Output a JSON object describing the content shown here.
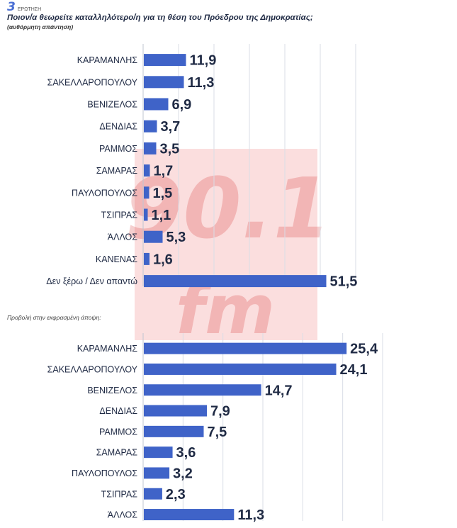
{
  "header": {
    "question_number": "3",
    "question_label": "ΕΡΩΤΗΣΗ",
    "title": "Ποιον/α θεωρείτε καταλληλότερο/η για τη θέση του Πρόεδρου της Δημοκρατίας;",
    "subtitle": "(αυθόρμητη απάντηση)"
  },
  "watermark": {
    "text_top": "90.1",
    "text_bottom": "fm",
    "color": "#d62828"
  },
  "colors": {
    "bar": "#3f63c8",
    "text": "#1f2a44",
    "grid": "#d9dde6"
  },
  "section2_label": "Προβολή στην εκφρασμένη άποψη:",
  "chart_data": [
    {
      "type": "bar",
      "orientation": "horizontal",
      "title": "",
      "categories": [
        "ΚΑΡΑΜΑΝΛΗΣ",
        "ΣΑΚΕΛΛΑΡΟΠΟΥΛΟΥ",
        "ΒΕΝΙΖΕΛΟΣ",
        "ΔΕΝΔΙΑΣ",
        "ΡΑΜΜΟΣ",
        "ΣΑΜΑΡΑΣ",
        "ΠΑΥΛΟΠΟΥΛΟΣ",
        "ΤΣΙΠΡΑΣ",
        "ΆΛΛΟΣ",
        "ΚΑΝΕΝΑΣ",
        "Δεν ξέρω / Δεν απαντώ"
      ],
      "values": [
        11.9,
        11.3,
        6.9,
        3.7,
        3.5,
        1.7,
        1.5,
        1.1,
        5.3,
        1.6,
        51.5
      ],
      "value_labels": [
        "11,9",
        "11,3",
        "6,9",
        "3,7",
        "3,5",
        "1,7",
        "1,5",
        "1,1",
        "5,3",
        "1,6",
        "51,5"
      ],
      "xlim": [
        0,
        60
      ],
      "grid": true
    },
    {
      "type": "bar",
      "orientation": "horizontal",
      "title": "",
      "categories": [
        "ΚΑΡΑΜΑΝΛΗΣ",
        "ΣΑΚΕΛΛΑΡΟΠΟΥΛΟΥ",
        "ΒΕΝΙΖΕΛΟΣ",
        "ΔΕΝΔΙΑΣ",
        "ΡΑΜΜΟΣ",
        "ΣΑΜΑΡΑΣ",
        "ΠΑΥΛΟΠΟΥΛΟΣ",
        "ΤΣΙΠΡΑΣ",
        "ΆΛΛΟΣ"
      ],
      "values": [
        25.4,
        24.1,
        14.7,
        7.9,
        7.5,
        3.6,
        3.2,
        2.3,
        11.3
      ],
      "value_labels": [
        "25,4",
        "24,1",
        "14,7",
        "7,9",
        "7,5",
        "3,6",
        "3,2",
        "2,3",
        "11,3"
      ],
      "xlim": [
        0,
        30
      ],
      "grid": true
    }
  ]
}
